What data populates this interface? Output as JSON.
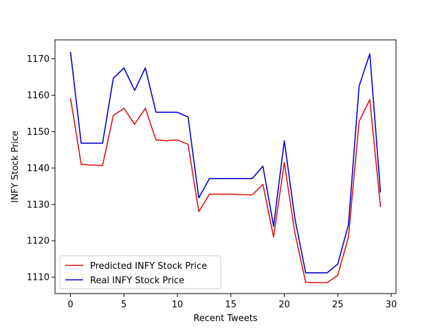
{
  "chart_data": {
    "type": "line",
    "title": "",
    "xlabel": "Recent Tweets",
    "ylabel": "INFY Stock Price",
    "xlim": [
      -1.45,
      30.45
    ],
    "ylim": [
      1105.5,
      1175.2
    ],
    "xticks": [
      0,
      5,
      10,
      15,
      20,
      25,
      30
    ],
    "yticks": [
      1110,
      1120,
      1130,
      1140,
      1150,
      1160,
      1170
    ],
    "grid": false,
    "legend_position": "lower-left",
    "x": [
      0,
      1,
      2,
      3,
      4,
      5,
      6,
      7,
      8,
      9,
      10,
      11,
      12,
      13,
      14,
      15,
      16,
      17,
      18,
      19,
      20,
      21,
      22,
      23,
      24,
      25,
      26,
      27,
      28,
      29
    ],
    "series": [
      {
        "name": "Predicted INFY Stock Price",
        "color": "#dd1111",
        "values": [
          1159.2,
          1141.0,
          1140.8,
          1140.7,
          1154.4,
          1156.4,
          1152.0,
          1156.4,
          1147.7,
          1147.5,
          1147.7,
          1146.5,
          1128.0,
          1132.8,
          1132.8,
          1132.8,
          1132.7,
          1132.6,
          1135.5,
          1121.0,
          1141.5,
          1122.0,
          1108.6,
          1108.5,
          1108.5,
          1110.5,
          1121.0,
          1152.8,
          1158.8,
          1129.3
        ]
      },
      {
        "name": "Real INFY Stock Price",
        "color": "#0000cc",
        "values": [
          1171.9,
          1146.8,
          1146.8,
          1146.8,
          1164.6,
          1167.5,
          1161.3,
          1167.5,
          1155.3,
          1155.3,
          1155.3,
          1154.0,
          1131.8,
          1137.1,
          1137.1,
          1137.1,
          1137.1,
          1137.1,
          1140.5,
          1124.0,
          1147.5,
          1126.0,
          1111.2,
          1111.2,
          1111.2,
          1113.6,
          1124.4,
          1162.5,
          1171.4,
          1133.3
        ]
      }
    ]
  }
}
